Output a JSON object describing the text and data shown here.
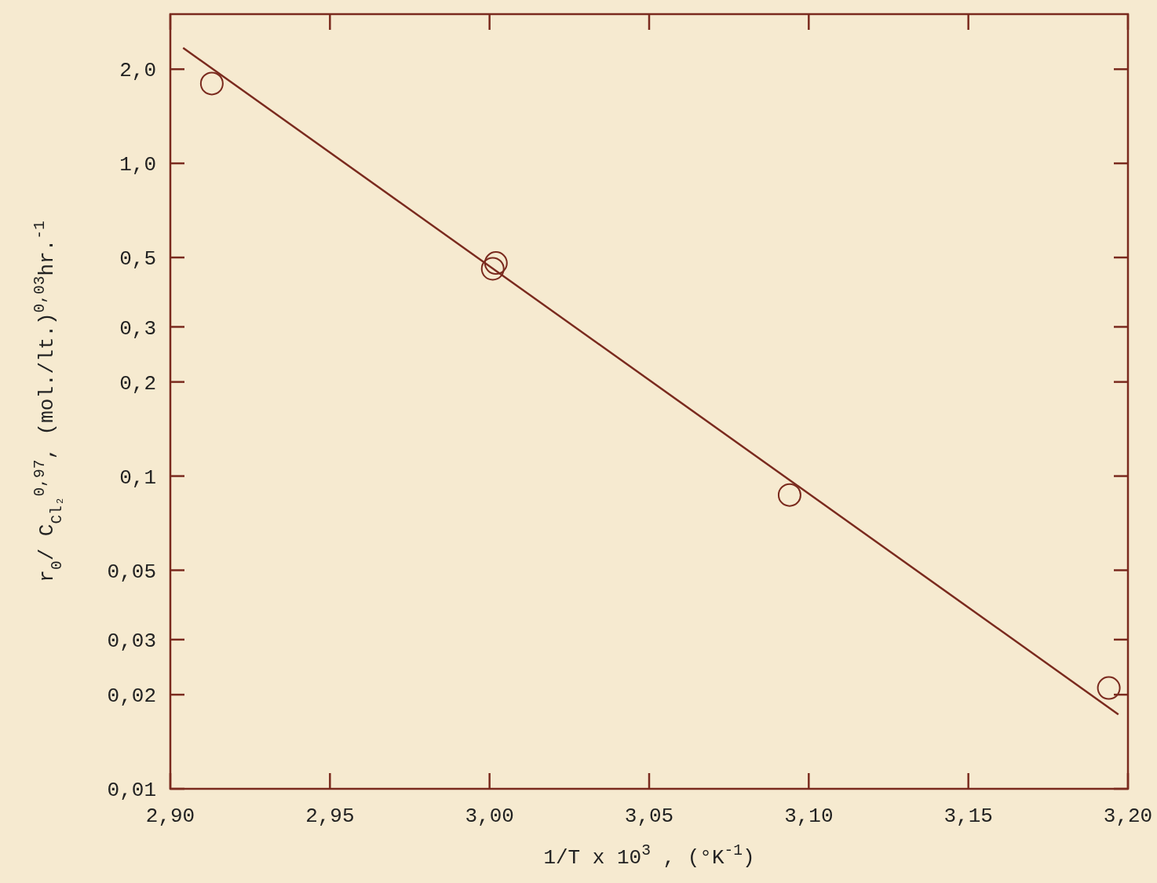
{
  "chart_data": {
    "type": "scatter",
    "xlabel": "1/T x 10$^{3}$ , (°K$^{-1}$)",
    "ylabel": "r$_{0}$/ C$_{Cl₂}$$^{0,97}$, (mol./lt.)$^{0,03}$hr.$^{-1}$",
    "log": "y",
    "grid": false,
    "xlim": [
      2.9,
      3.2
    ],
    "ylim": [
      0.01,
      3
    ],
    "xticks": [
      {
        "value": 2.9,
        "label": "2,90"
      },
      {
        "value": 2.95,
        "label": "2,95"
      },
      {
        "value": 3.0,
        "label": "3,00"
      },
      {
        "value": 3.05,
        "label": "3,05"
      },
      {
        "value": 3.1,
        "label": "3,10"
      },
      {
        "value": 3.15,
        "label": "3,15"
      },
      {
        "value": 3.2,
        "label": "3,20"
      }
    ],
    "yticks": [
      {
        "value": 0.01,
        "label": "0,01"
      },
      {
        "value": 0.02,
        "label": "0,02"
      },
      {
        "value": 0.03,
        "label": "0,03"
      },
      {
        "value": 0.05,
        "label": "0,05"
      },
      {
        "value": 0.1,
        "label": "0,1"
      },
      {
        "value": 0.2,
        "label": "0,2"
      },
      {
        "value": 0.3,
        "label": "0,3"
      },
      {
        "value": 0.5,
        "label": "0,5"
      },
      {
        "value": 1.0,
        "label": "1,0"
      },
      {
        "value": 2.0,
        "label": "2,0"
      }
    ],
    "series": [
      {
        "marker": "circle",
        "color": "#7a2a1e",
        "x": [
          2.913,
          3.002,
          3.001,
          3.094,
          3.194
        ],
        "values": [
          1.8,
          0.48,
          0.46,
          0.087,
          0.021
        ]
      },
      {
        "type": "line",
        "marker": "none",
        "line_style": "solid",
        "color": "#7a2a1e",
        "x": [
          2.904,
          3.197
        ],
        "values": [
          2.34,
          0.0173
        ]
      }
    ]
  }
}
